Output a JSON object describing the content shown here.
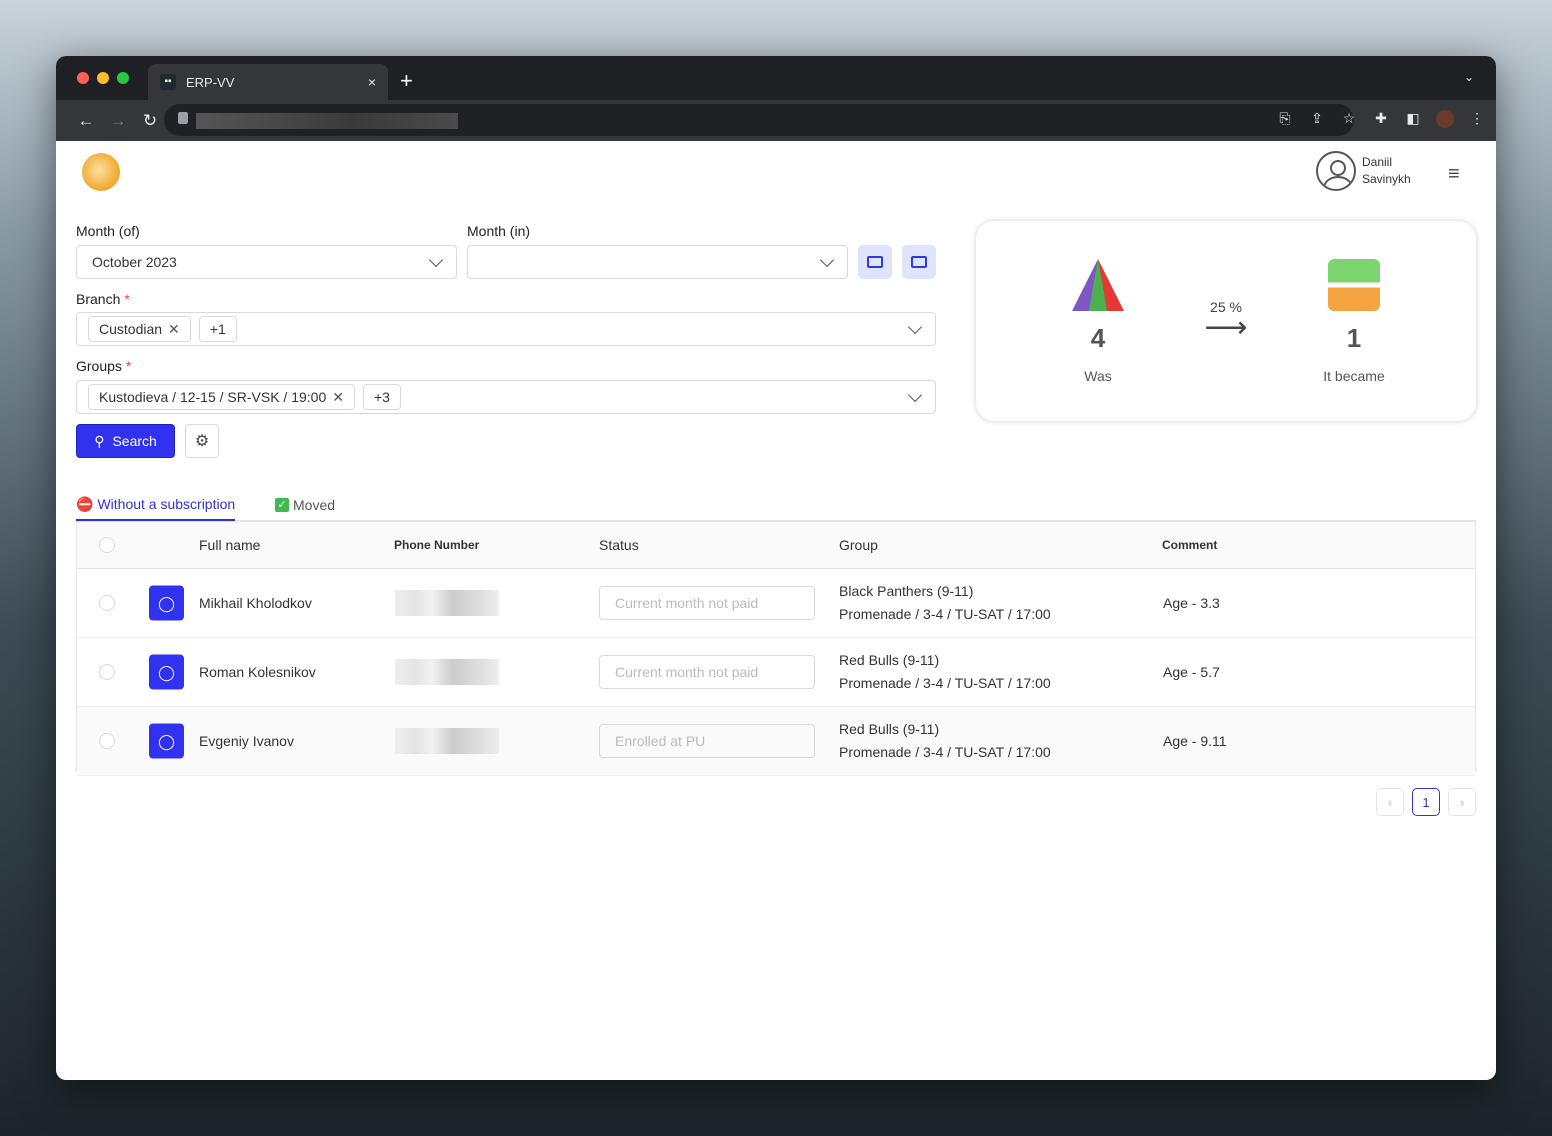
{
  "browser": {
    "tab_title": "ERP-VV",
    "new_tab": "+",
    "close": "×"
  },
  "header": {
    "user_name_first": "Daniil",
    "user_name_last": "Savinykh"
  },
  "filters": {
    "month_of_label": "Month (of)",
    "month_of_value": "October 2023",
    "month_in_label": "Month (in)",
    "month_in_value": "",
    "branch_label": "Branch",
    "branch_chips": [
      "Custodian"
    ],
    "branch_more": "+1",
    "groups_label": "Groups",
    "groups_chips": [
      "Kustodieva / 12-15 / SR-VSK / 19:00"
    ],
    "groups_more": "+3",
    "required_mark": "*",
    "search_label": "Search"
  },
  "summary": {
    "was_value": "4",
    "was_label": "Was",
    "percent": "25 %",
    "became_value": "1",
    "became_label": "It became"
  },
  "tabs": [
    {
      "label": "Without a subscription",
      "icon": "no-entry-icon",
      "active": true
    },
    {
      "label": "Moved",
      "icon": "check-box-icon",
      "active": false
    }
  ],
  "table": {
    "columns": [
      "Full name",
      "Phone Number",
      "Status",
      "Group",
      "Comment"
    ],
    "rows": [
      {
        "name": "Mikhail Kholodkov",
        "status": "Current month not paid",
        "group1": "Black Panthers (9-11)",
        "group2": "Promenade / 3-4 / TU-SAT / 17:00",
        "comment": "Age - 3.3"
      },
      {
        "name": "Roman Kolesnikov",
        "status": "Current month not paid",
        "group1": "Red Bulls (9-11)",
        "group2": "Promenade / 3-4 / TU-SAT / 17:00",
        "comment": "Age - 5.7"
      },
      {
        "name": "Evgeniy Ivanov",
        "status": "Enrolled at PU",
        "group1": "Red Bulls (9-11)",
        "group2": "Promenade / 3-4 / TU-SAT / 17:00",
        "comment": "Age - 9.11"
      }
    ]
  },
  "pagination": {
    "current": "1",
    "prev": "‹",
    "next": "›"
  },
  "colors": {
    "accent": "#3131f0",
    "tab_bar": "#1f2023"
  }
}
